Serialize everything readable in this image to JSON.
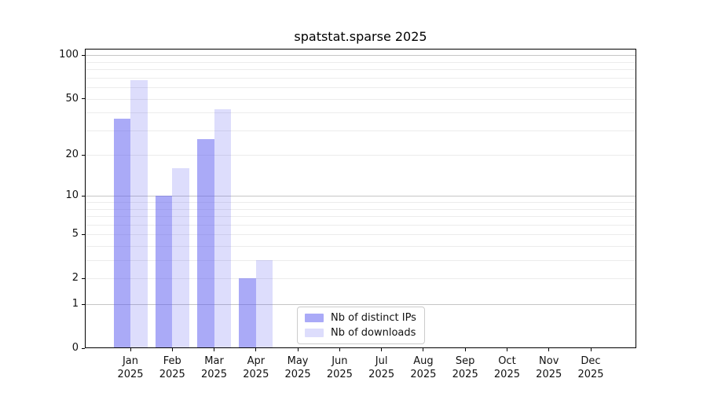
{
  "figure": {
    "background": "#ffffff",
    "title": "spatstat.sparse 2025"
  },
  "chart_data": {
    "type": "bar",
    "title": "spatstat.sparse 2025",
    "xlabel": "",
    "ylabel": "",
    "year": "2025",
    "categories": [
      "Jan",
      "Feb",
      "Mar",
      "Apr",
      "May",
      "Jun",
      "Jul",
      "Aug",
      "Sep",
      "Oct",
      "Nov",
      "Dec"
    ],
    "series": [
      {
        "name": "Nb of distinct IPs",
        "color": "#5555F0",
        "opacity": 0.5,
        "rendered_color": "#AAAAF8",
        "values": [
          36,
          10,
          26,
          2,
          0,
          0,
          0,
          0,
          0,
          0,
          0,
          0
        ]
      },
      {
        "name": "Nb of downloads",
        "color": "#5555F0",
        "opacity": 0.2,
        "rendered_color": "#DDDDFC",
        "values": [
          67,
          16,
          42,
          3,
          0,
          0,
          0,
          0,
          0,
          0,
          0,
          0
        ]
      }
    ],
    "yscale": "log1p",
    "ylim": [
      0,
      111
    ],
    "ytick_values": [
      0,
      1,
      2,
      5,
      10,
      20,
      50,
      100
    ],
    "grid": {
      "major_values": [
        1,
        10,
        100
      ],
      "minor_values": [
        2,
        3,
        4,
        5,
        6,
        7,
        8,
        9,
        20,
        30,
        40,
        50,
        60,
        70,
        80,
        90
      ],
      "major_color": "#c6c6c6",
      "minor_color": "#ececec"
    },
    "legend": {
      "position": "lower center",
      "border_color": "#cccccc"
    },
    "spine_color": "#000000",
    "text_color": "#111111"
  }
}
